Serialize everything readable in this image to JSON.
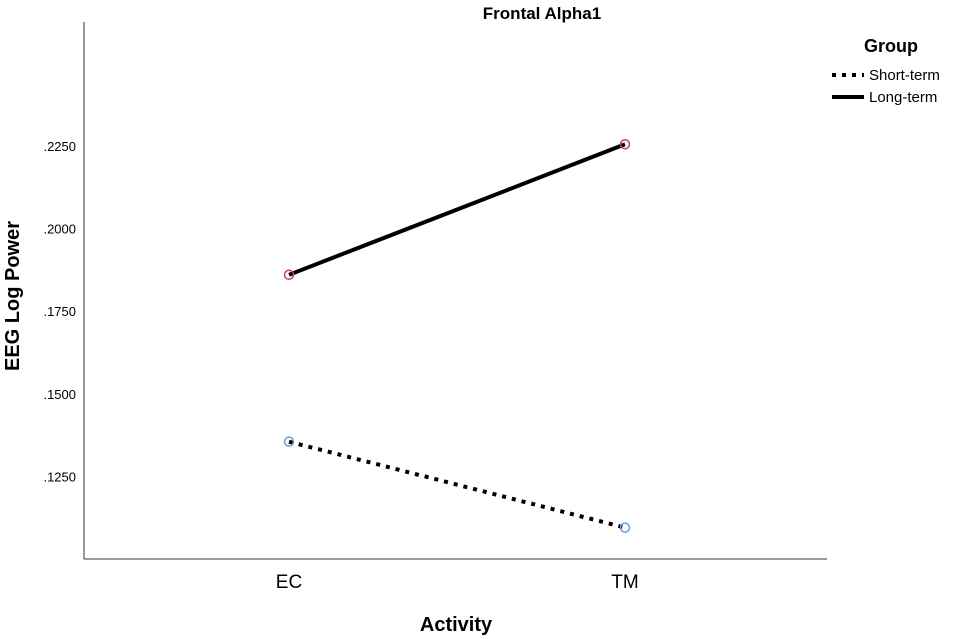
{
  "chart_data": {
    "type": "line",
    "title": "Frontal Alpha1",
    "xlabel": "Activity",
    "ylabel": "EEG Log Power",
    "categories": [
      "EC",
      "TM"
    ],
    "yticks": [
      0.125,
      0.15,
      0.175,
      0.2,
      0.225
    ],
    "ytick_labels": [
      ".1250",
      ".1500",
      ".1750",
      ".2000",
      ".2250"
    ],
    "ylim": [
      0.1,
      0.2625
    ],
    "grid": false,
    "legend": {
      "title": "Group",
      "placement": "top-right outside plot"
    },
    "series": [
      {
        "name": "Short-term",
        "values": [
          0.1355,
          0.1095
        ],
        "line_style": "dotted",
        "line_color": "#000000",
        "marker_color": "#6a9fd4"
      },
      {
        "name": "Long-term",
        "values": [
          0.186,
          0.2255
        ],
        "line_style": "solid",
        "line_color": "#000000",
        "marker_color": "#d23a55"
      }
    ]
  }
}
